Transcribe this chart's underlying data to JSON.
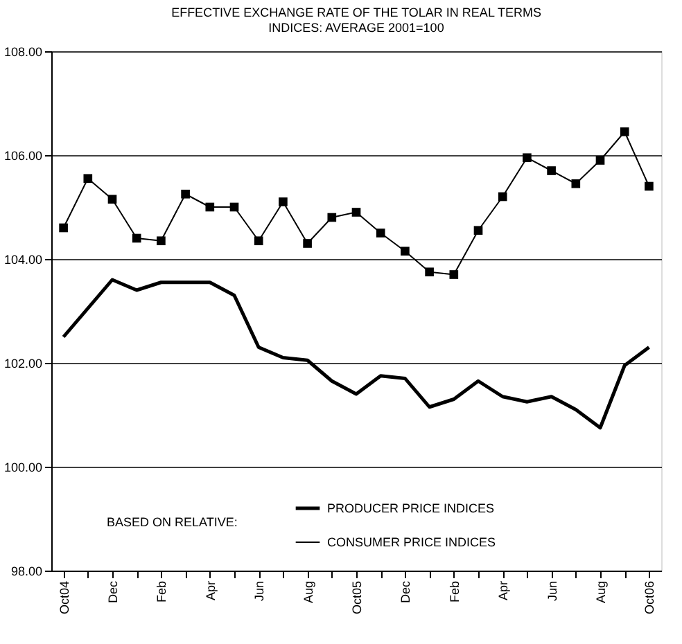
{
  "chart_data": {
    "type": "line",
    "title": "EFFECTIVE EXCHANGE RATE OF THE TOLAR IN REAL TERMS",
    "subtitle": "INDICES: AVERAGE 2001=100",
    "categories": [
      "Oct04",
      null,
      "Dec",
      null,
      "Feb",
      null,
      "Apr",
      null,
      "Jun",
      null,
      "Aug",
      null,
      "Oct05",
      null,
      "Dec",
      null,
      "Feb",
      null,
      "Apr",
      null,
      "Jun",
      null,
      "Aug",
      null,
      "Oct06"
    ],
    "series": [
      {
        "name": "PRODUCER PRICE INDICES",
        "color": "#000000",
        "marker": "none",
        "line_style": "solid",
        "values": [
          102.5,
          103.05,
          103.6,
          103.4,
          103.55,
          103.55,
          103.55,
          103.3,
          102.3,
          102.1,
          102.05,
          101.65,
          101.4,
          101.75,
          101.7,
          101.15,
          101.3,
          101.65,
          101.35,
          101.25,
          101.35,
          101.1,
          100.75,
          101.95,
          102.3
        ]
      },
      {
        "name": "CONSUMER PRICE INDICES",
        "color": "#000000",
        "marker": "square",
        "line_style": "solid",
        "values": [
          104.6,
          105.55,
          105.15,
          104.4,
          104.35,
          105.25,
          105.0,
          105.0,
          104.35,
          105.1,
          104.3,
          104.8,
          104.9,
          104.5,
          104.15,
          103.75,
          103.7,
          104.55,
          105.2,
          105.95,
          105.7,
          105.45,
          105.9,
          106.45,
          105.4
        ]
      }
    ],
    "ylim": [
      98,
      108
    ],
    "yticks": [
      {
        "value": 98,
        "label": "98.00"
      },
      {
        "value": 100,
        "label": "100.00"
      },
      {
        "value": 102,
        "label": "102.00"
      },
      {
        "value": 104,
        "label": "104.00"
      },
      {
        "value": 106,
        "label": "106.00"
      },
      {
        "value": 108,
        "label": "108.00"
      }
    ],
    "grid": "y",
    "legend": "bottom",
    "legend_title": "BASED ON RELATIVE:"
  }
}
